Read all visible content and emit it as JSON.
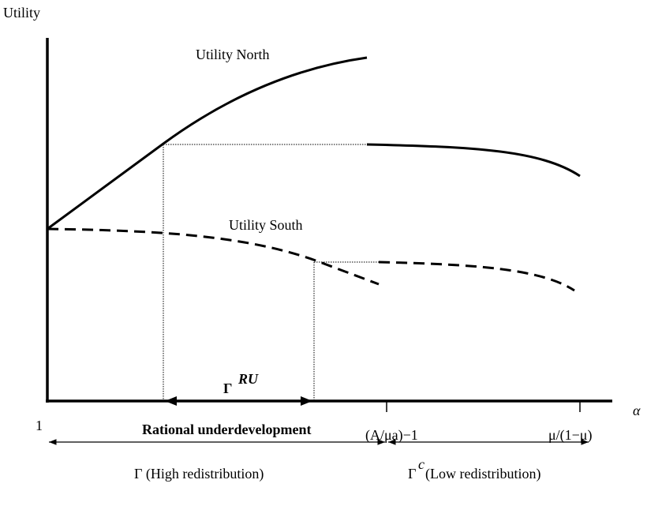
{
  "axis": {
    "y_label": "Utility",
    "x_label": "α",
    "origin_label": "1",
    "tick_1_label": "(A/μa)−1",
    "tick_2_label": "μ/(1−μ)"
  },
  "curves": {
    "north_label": "Utility North",
    "south_label": "Utility South"
  },
  "interval": {
    "symbol": "Γ",
    "superscript": "RU",
    "caption": "Rational underdevelopment"
  },
  "regimes": {
    "high": "Γ (High redistribution)",
    "low_symbol": "Γ",
    "low_superscript": "c",
    "low_text": "(Low redistribution)"
  }
}
